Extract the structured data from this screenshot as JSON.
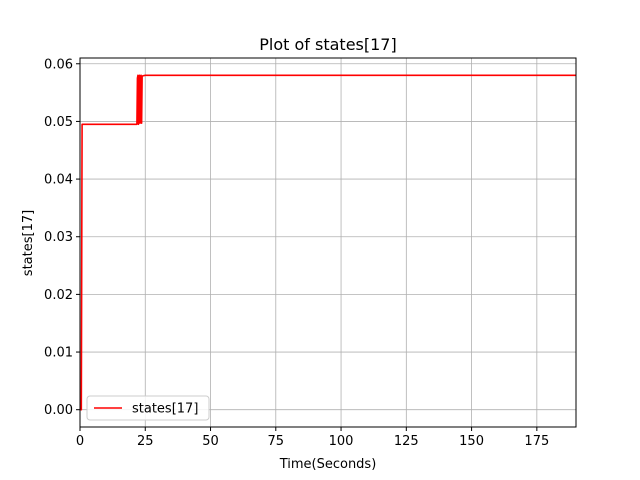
{
  "chart_data": {
    "type": "line",
    "title": "Plot of states[17]",
    "xlabel": "Time(Seconds)",
    "ylabel": "states[17]",
    "xlim": [
      0,
      190
    ],
    "ylim": [
      -0.003,
      0.061
    ],
    "xticks": [
      0,
      25,
      50,
      75,
      100,
      125,
      150,
      175
    ],
    "yticks": [
      0.0,
      0.01,
      0.02,
      0.03,
      0.04,
      0.05,
      0.06
    ],
    "ytick_labels": [
      "0.00",
      "0.01",
      "0.02",
      "0.03",
      "0.04",
      "0.05",
      "0.06"
    ],
    "grid": true,
    "legend": "lower-left",
    "series": [
      {
        "name": "states[17]",
        "color": "#ff0000",
        "x": [
          0,
          0.5,
          0.8,
          1.2,
          21.8,
          22.0,
          22.2,
          22.4,
          22.6,
          22.8,
          23.0,
          23.2,
          23.4,
          23.6,
          23.8,
          24.0,
          25.0,
          190
        ],
        "y": [
          0.0,
          0.0,
          0.0495,
          0.0495,
          0.0495,
          0.0575,
          0.058,
          0.0495,
          0.0578,
          0.058,
          0.0497,
          0.0576,
          0.058,
          0.0497,
          0.0578,
          0.0579,
          0.058,
          0.058
        ]
      }
    ]
  }
}
